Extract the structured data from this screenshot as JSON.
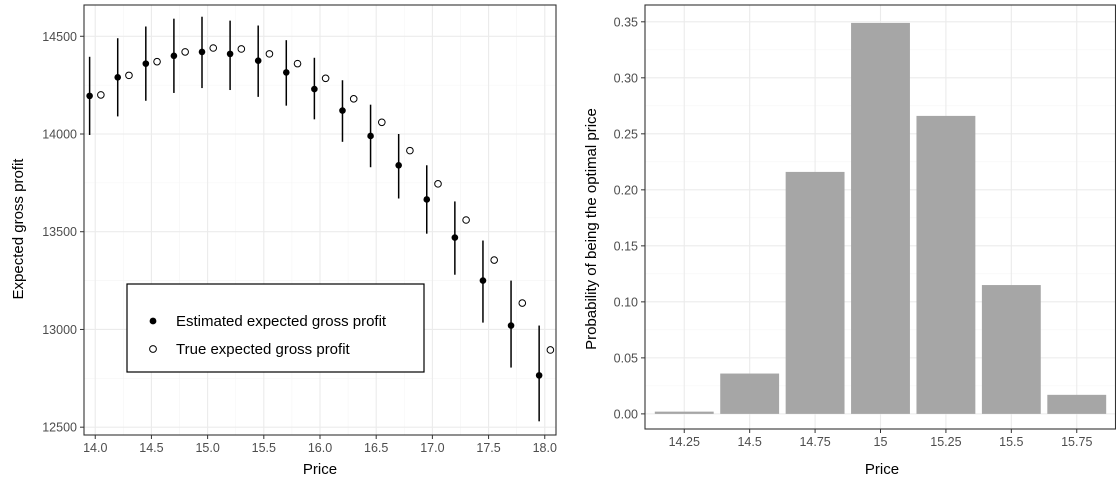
{
  "chart_data": [
    {
      "type": "scatter",
      "title": "",
      "xlabel": "Price",
      "ylabel": "Expected gross profit",
      "xlim": [
        13.9,
        18.1
      ],
      "ylim": [
        12460,
        14660
      ],
      "xticks": [
        14.0,
        14.5,
        15.0,
        15.5,
        16.0,
        16.5,
        17.0,
        17.5,
        18.0
      ],
      "xtick_labels": [
        "14.0",
        "14.5",
        "15.0",
        "15.5",
        "16.0",
        "16.5",
        "17.0",
        "17.5",
        "18.0"
      ],
      "yticks": [
        12500,
        13000,
        13500,
        14000,
        14500
      ],
      "ytick_labels": [
        "12500",
        "13000",
        "13500",
        "14000",
        "14500"
      ],
      "grid": true,
      "legend_position": "bottom-left",
      "series": [
        {
          "name": "Estimated expected gross profit",
          "marker": "filled-circle",
          "x": [
            13.95,
            14.2,
            14.45,
            14.7,
            14.95,
            15.2,
            15.45,
            15.7,
            15.95,
            16.2,
            16.45,
            16.7,
            16.95,
            17.2,
            17.45,
            17.7,
            17.95
          ],
          "y": [
            14195,
            14290,
            14360,
            14400,
            14420,
            14410,
            14375,
            14315,
            14230,
            14120,
            13990,
            13840,
            13665,
            13470,
            13250,
            13020,
            12765
          ],
          "ci_low": [
            13995,
            14090,
            14170,
            14210,
            14235,
            14225,
            14190,
            14145,
            14075,
            13960,
            13830,
            13670,
            13490,
            13280,
            13035,
            12805,
            12530
          ],
          "ci_high": [
            14395,
            14490,
            14550,
            14590,
            14600,
            14580,
            14555,
            14480,
            14390,
            14275,
            14150,
            14000,
            13840,
            13655,
            13455,
            13250,
            13020
          ]
        },
        {
          "name": "True expected gross profit",
          "marker": "open-circle",
          "x": [
            14.05,
            14.3,
            14.55,
            14.8,
            15.05,
            15.3,
            15.55,
            15.8,
            16.05,
            16.3,
            16.55,
            16.8,
            17.05,
            17.3,
            17.55,
            17.8,
            18.05
          ],
          "y": [
            14200,
            14300,
            14370,
            14420,
            14440,
            14435,
            14410,
            14360,
            14285,
            14180,
            14060,
            13915,
            13745,
            13560,
            13355,
            13135,
            12895
          ]
        }
      ]
    },
    {
      "type": "bar",
      "title": "",
      "xlabel": "Price",
      "ylabel": "Probability of being the optimal price",
      "categories": [
        "14.25",
        "14.5",
        "14.75",
        "15",
        "15.25",
        "15.5",
        "15.75"
      ],
      "values": [
        0.002,
        0.036,
        0.216,
        0.349,
        0.266,
        0.115,
        0.017
      ],
      "ylim": [
        -0.0135,
        0.365
      ],
      "yticks": [
        0.0,
        0.05,
        0.1,
        0.15,
        0.2,
        0.25,
        0.3,
        0.35
      ],
      "ytick_labels": [
        "0.00",
        "0.05",
        "0.10",
        "0.15",
        "0.20",
        "0.25",
        "0.30",
        "0.35"
      ],
      "grid": true,
      "bar_color": "#a6a6a6"
    }
  ]
}
